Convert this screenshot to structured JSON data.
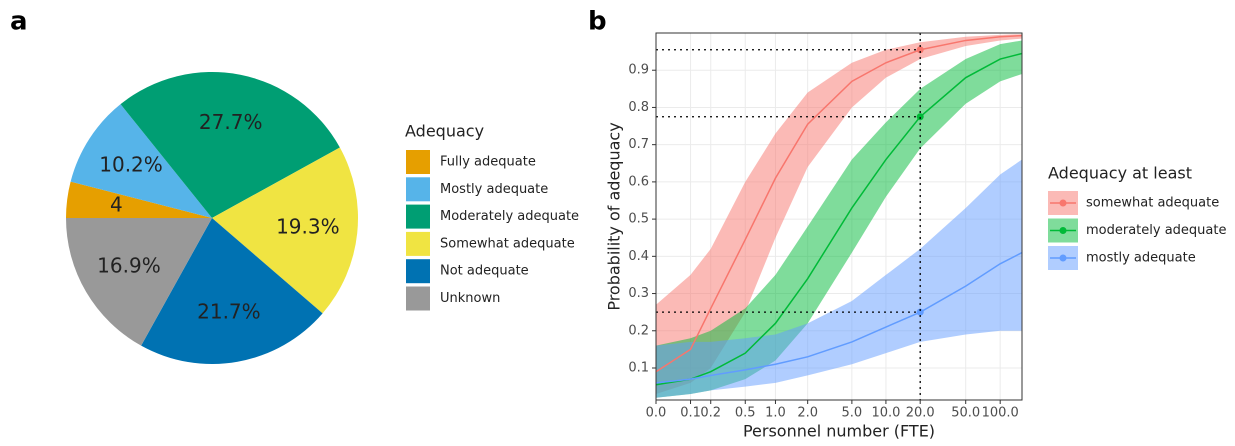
{
  "chart_data": [
    {
      "type": "pie",
      "panel_label": "a",
      "legend_title": "Adequacy",
      "categories": [
        "Fully adequate",
        "Mostly adequate",
        "Moderately adequate",
        "Somewhat adequate",
        "Not adequate",
        "Unknown"
      ],
      "values": [
        4,
        10.2,
        27.7,
        19.3,
        21.7,
        16.9
      ],
      "value_labels": [
        "4",
        "10.2%",
        "27.7%",
        "19.3%",
        "21.7%",
        "16.9%"
      ],
      "colors": [
        "#e69f00",
        "#56b4e9",
        "#009e73",
        "#f0e442",
        "#0072b2",
        "#999999"
      ]
    },
    {
      "type": "line",
      "panel_label": "b",
      "legend_title": "Adequacy at least",
      "x_label": "Personnel number (FTE)",
      "y_label": "Probability of adequacy",
      "x": [
        0,
        0.1,
        0.2,
        0.5,
        1,
        2,
        5,
        10,
        20,
        50,
        100,
        155
      ],
      "xlim": [
        0,
        155
      ],
      "ylim": [
        0.014,
        1.0
      ],
      "grid": true,
      "highlight_x": 20,
      "xticks": [
        {
          "value": 0,
          "label": "0.0"
        },
        0.1,
        0.2,
        0.5,
        {
          "value": 1,
          "label": "1.0"
        },
        {
          "value": 2,
          "label": "2.0"
        },
        {
          "value": 5,
          "label": "5.0"
        },
        {
          "value": 10,
          "label": "10.0"
        },
        {
          "value": 20,
          "label": "20.0"
        },
        {
          "value": 50,
          "label": "50.0"
        },
        {
          "value": 100,
          "label": "100.0"
        }
      ],
      "yticks": [
        0.1,
        0.2,
        0.3,
        0.4,
        0.5,
        0.6,
        0.7,
        0.8,
        0.9
      ],
      "series": [
        {
          "name": "somewhat adequate",
          "color": "#f8766d",
          "values": [
            0.09,
            0.15,
            0.26,
            0.445,
            0.61,
            0.755,
            0.87,
            0.92,
            0.955,
            0.98,
            0.99,
            0.993
          ],
          "lower": [
            0.03,
            0.06,
            0.1,
            0.25,
            0.45,
            0.64,
            0.8,
            0.88,
            0.93,
            0.965,
            0.98,
            0.985
          ],
          "upper": [
            0.27,
            0.35,
            0.42,
            0.6,
            0.73,
            0.84,
            0.92,
            0.955,
            0.975,
            0.99,
            0.995,
            0.997
          ]
        },
        {
          "name": "moderately adequate",
          "color": "#00ba38",
          "values": [
            0.055,
            0.07,
            0.09,
            0.14,
            0.22,
            0.34,
            0.53,
            0.66,
            0.775,
            0.88,
            0.93,
            0.945
          ],
          "lower": [
            0.02,
            0.03,
            0.04,
            0.07,
            0.12,
            0.22,
            0.41,
            0.56,
            0.69,
            0.81,
            0.87,
            0.89
          ],
          "upper": [
            0.16,
            0.18,
            0.2,
            0.26,
            0.35,
            0.48,
            0.66,
            0.76,
            0.85,
            0.93,
            0.97,
            0.98
          ]
        },
        {
          "name": "mostly adequate",
          "color": "#619cff",
          "values": [
            0.06,
            0.07,
            0.08,
            0.095,
            0.11,
            0.13,
            0.17,
            0.21,
            0.25,
            0.32,
            0.38,
            0.41
          ],
          "lower": [
            0.02,
            0.03,
            0.04,
            0.05,
            0.06,
            0.08,
            0.11,
            0.14,
            0.17,
            0.19,
            0.2,
            0.2
          ],
          "upper": [
            0.16,
            0.17,
            0.17,
            0.18,
            0.19,
            0.22,
            0.28,
            0.35,
            0.42,
            0.53,
            0.62,
            0.66
          ]
        }
      ]
    }
  ]
}
